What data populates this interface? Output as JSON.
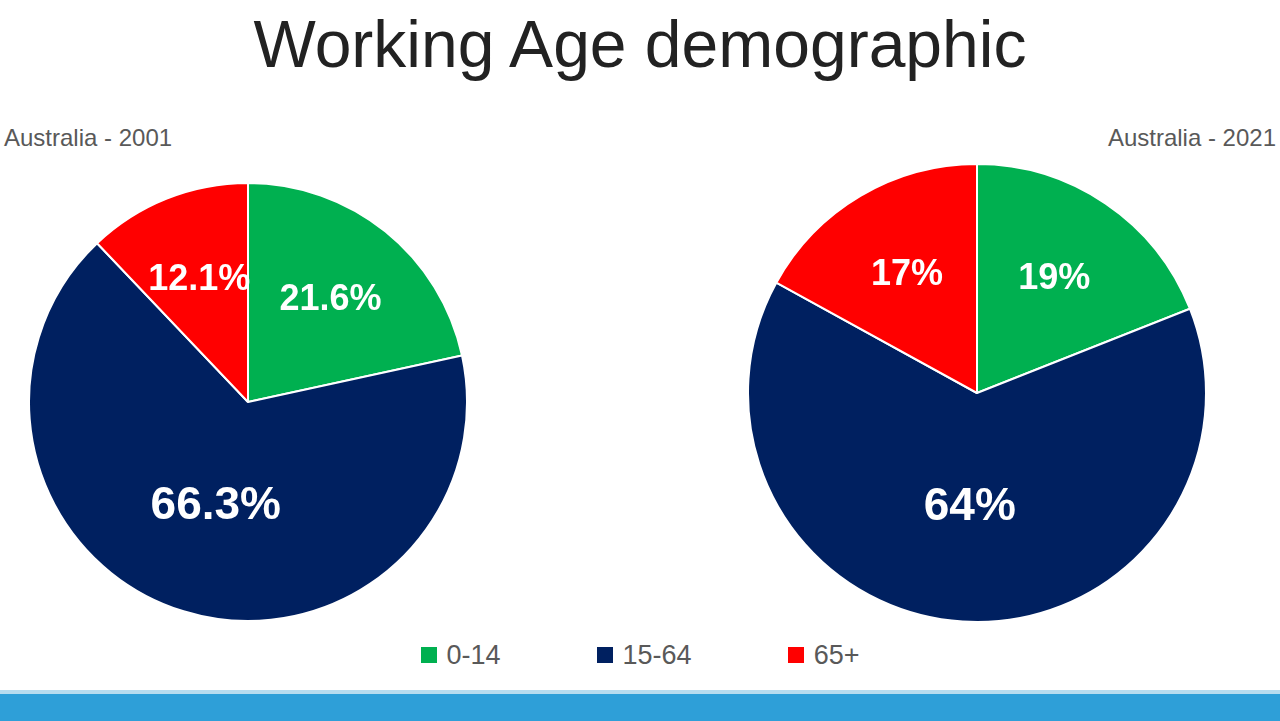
{
  "title": "Working Age demographic",
  "chart_data": [
    {
      "type": "pie",
      "title": "Australia - 2001",
      "categories": [
        "0-14",
        "15-64",
        "65+"
      ],
      "values": [
        21.6,
        66.3,
        12.1
      ],
      "value_labels": [
        "21.6%",
        "66.3%",
        "12.1%"
      ],
      "colors": [
        "#00b050",
        "#002060",
        "#ff0000"
      ],
      "data_labels": true,
      "legend": "bottom"
    },
    {
      "type": "pie",
      "title": "Australia - 2021",
      "categories": [
        "0-14",
        "15-64",
        "65+"
      ],
      "values": [
        19,
        64,
        17
      ],
      "value_labels": [
        "19%",
        "64%",
        "17%"
      ],
      "colors": [
        "#00b050",
        "#002060",
        "#ff0000"
      ],
      "data_labels": true
    }
  ]
}
